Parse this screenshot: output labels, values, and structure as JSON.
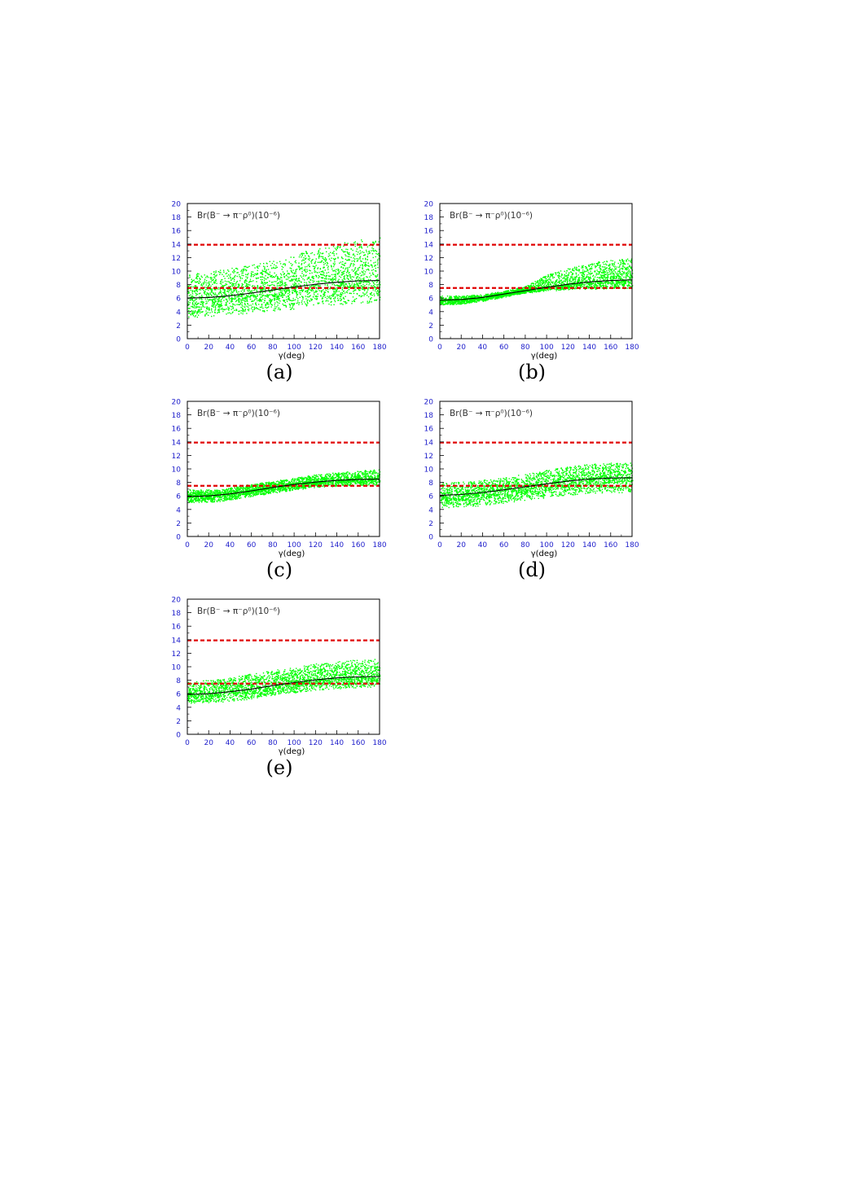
{
  "colors": {
    "scatter": "#00ff00",
    "bound_lines": "#e00000",
    "axis_labels": "#2222cc",
    "frame": "#000000",
    "curve": "#000000"
  },
  "chart_data": [
    {
      "type": "scatter",
      "panel_label": "(a)",
      "annotation": "Br(B⁻ → π⁻ρ⁰)(10⁻⁶)",
      "xlabel": "γ(deg)",
      "ylabel": "",
      "xlim": [
        0,
        180
      ],
      "ylim": [
        0,
        20
      ],
      "xticks": [
        0,
        20,
        40,
        60,
        80,
        100,
        120,
        140,
        160,
        180
      ],
      "yticks": [
        0,
        2,
        4,
        6,
        8,
        10,
        12,
        14,
        16,
        18,
        20
      ],
      "hlines": [
        7.5,
        13.9
      ],
      "central_curve": {
        "x": [
          0,
          20,
          40,
          60,
          80,
          100,
          120,
          140,
          160,
          180
        ],
        "y": [
          6.0,
          6.1,
          6.35,
          6.75,
          7.2,
          7.65,
          8.05,
          8.35,
          8.55,
          8.6
        ]
      },
      "scatter_band": {
        "x": [
          0,
          30,
          60,
          90,
          120,
          150,
          180
        ],
        "lower": [
          3.2,
          3.4,
          3.9,
          4.3,
          4.8,
          5.2,
          5.4
        ],
        "upper": [
          9.5,
          10.2,
          11.0,
          12.0,
          13.5,
          14.5,
          15.0
        ]
      }
    },
    {
      "type": "scatter",
      "panel_label": "(b)",
      "annotation": "Br(B⁻ → π⁻ρ⁰)(10⁻⁶)",
      "xlabel": "γ(deg)",
      "ylabel": "",
      "xlim": [
        0,
        180
      ],
      "ylim": [
        0,
        20
      ],
      "xticks": [
        0,
        20,
        40,
        60,
        80,
        100,
        120,
        140,
        160,
        180
      ],
      "yticks": [
        0,
        2,
        4,
        6,
        8,
        10,
        12,
        14,
        16,
        18,
        20
      ],
      "hlines": [
        7.5,
        13.9
      ],
      "central_curve": {
        "x": [
          0,
          20,
          40,
          60,
          80,
          100,
          120,
          140,
          160,
          180
        ],
        "y": [
          5.7,
          5.8,
          6.1,
          6.6,
          7.1,
          7.6,
          8.05,
          8.4,
          8.6,
          8.7
        ]
      },
      "scatter_band": {
        "x": [
          0,
          20,
          40,
          60,
          80,
          100,
          120,
          150,
          180
        ],
        "lower": [
          5.0,
          5.2,
          5.6,
          6.2,
          6.8,
          7.1,
          7.3,
          7.4,
          7.5
        ],
        "upper": [
          6.4,
          6.4,
          6.6,
          7.1,
          7.8,
          9.5,
          10.5,
          11.5,
          12.0
        ]
      }
    },
    {
      "type": "scatter",
      "panel_label": "(c)",
      "annotation": "Br(B⁻ → π⁻ρ⁰)(10⁻⁶)",
      "xlabel": "γ(deg)",
      "ylabel": "",
      "xlim": [
        0,
        180
      ],
      "ylim": [
        0,
        20
      ],
      "xticks": [
        0,
        20,
        40,
        60,
        80,
        100,
        120,
        140,
        160,
        180
      ],
      "yticks": [
        0,
        2,
        4,
        6,
        8,
        10,
        12,
        14,
        16,
        18,
        20
      ],
      "hlines": [
        7.5,
        13.9
      ],
      "central_curve": {
        "x": [
          0,
          20,
          40,
          60,
          80,
          100,
          120,
          140,
          160,
          180
        ],
        "y": [
          5.9,
          6.0,
          6.3,
          6.75,
          7.25,
          7.7,
          8.05,
          8.3,
          8.45,
          8.5
        ]
      },
      "scatter_band": {
        "x": [
          0,
          30,
          60,
          90,
          120,
          150,
          180
        ],
        "lower": [
          5.0,
          5.2,
          6.0,
          6.7,
          7.3,
          7.6,
          7.7
        ],
        "upper": [
          7.0,
          7.0,
          7.8,
          8.5,
          9.2,
          9.7,
          10.0
        ]
      }
    },
    {
      "type": "scatter",
      "panel_label": "(d)",
      "annotation": "Br(B⁻ → π⁻ρ⁰)(10⁻⁶)",
      "xlabel": "γ(deg)",
      "ylabel": "",
      "xlim": [
        0,
        180
      ],
      "ylim": [
        0,
        20
      ],
      "xticks": [
        0,
        20,
        40,
        60,
        80,
        100,
        120,
        140,
        160,
        180
      ],
      "yticks": [
        0,
        2,
        4,
        6,
        8,
        10,
        12,
        14,
        16,
        18,
        20
      ],
      "hlines": [
        7.5,
        13.9
      ],
      "central_curve": {
        "x": [
          0,
          20,
          40,
          60,
          80,
          100,
          120,
          140,
          160,
          180
        ],
        "y": [
          6.1,
          6.2,
          6.5,
          6.9,
          7.35,
          7.8,
          8.2,
          8.5,
          8.65,
          8.7
        ]
      },
      "scatter_band": {
        "x": [
          0,
          30,
          60,
          90,
          120,
          150,
          180
        ],
        "lower": [
          4.3,
          4.5,
          5.0,
          5.6,
          6.2,
          6.5,
          6.6
        ],
        "upper": [
          8.0,
          8.2,
          8.8,
          9.6,
          10.4,
          10.9,
          11.0
        ]
      }
    },
    {
      "type": "scatter",
      "panel_label": "(e)",
      "annotation": "Br(B⁻ → π⁻ρ⁰)(10⁻⁶)",
      "xlabel": "γ(deg)",
      "ylabel": "",
      "xlim": [
        0,
        180
      ],
      "ylim": [
        0,
        20
      ],
      "xticks": [
        0,
        20,
        40,
        60,
        80,
        100,
        120,
        140,
        160,
        180
      ],
      "yticks": [
        0,
        2,
        4,
        6,
        8,
        10,
        12,
        14,
        16,
        18,
        20
      ],
      "hlines": [
        7.5,
        13.9
      ],
      "central_curve": {
        "x": [
          0,
          20,
          40,
          60,
          80,
          100,
          120,
          140,
          160,
          180
        ],
        "y": [
          5.9,
          6.0,
          6.3,
          6.7,
          7.2,
          7.65,
          8.05,
          8.35,
          8.5,
          8.55
        ]
      },
      "scatter_band": {
        "x": [
          0,
          30,
          60,
          90,
          120,
          150,
          180
        ],
        "lower": [
          4.6,
          4.8,
          5.3,
          6.0,
          6.6,
          6.9,
          7.0
        ],
        "upper": [
          7.8,
          8.2,
          9.0,
          9.8,
          10.5,
          11.0,
          11.2
        ]
      }
    }
  ]
}
